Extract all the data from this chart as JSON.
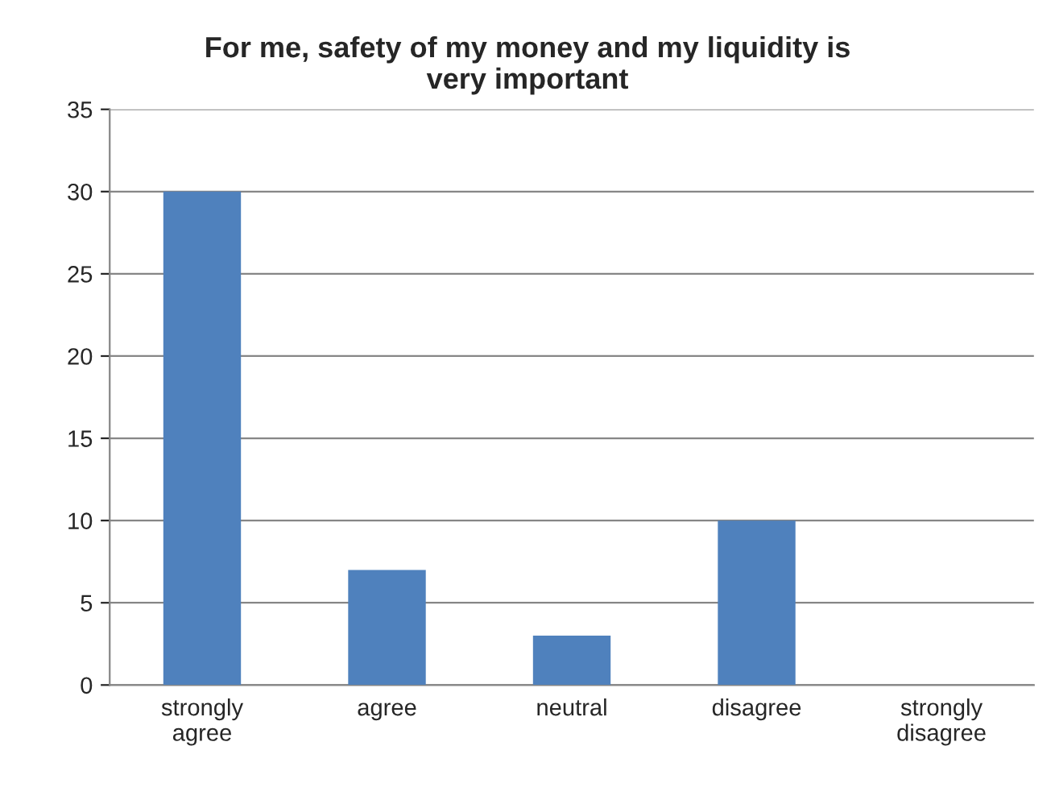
{
  "chart_data": {
    "type": "bar",
    "title": "For me, safety of my money and my liquidity is\nvery important",
    "categories": [
      "strongly\nagree",
      "agree",
      "neutral",
      "disagree",
      "strongly\ndisagree"
    ],
    "values": [
      30,
      7,
      3,
      10,
      0
    ],
    "color": "#4f81bd",
    "ylim": [
      0,
      35
    ],
    "yticks": [
      0,
      5,
      10,
      15,
      20,
      25,
      30,
      35
    ],
    "grid": "y",
    "legend": false
  }
}
